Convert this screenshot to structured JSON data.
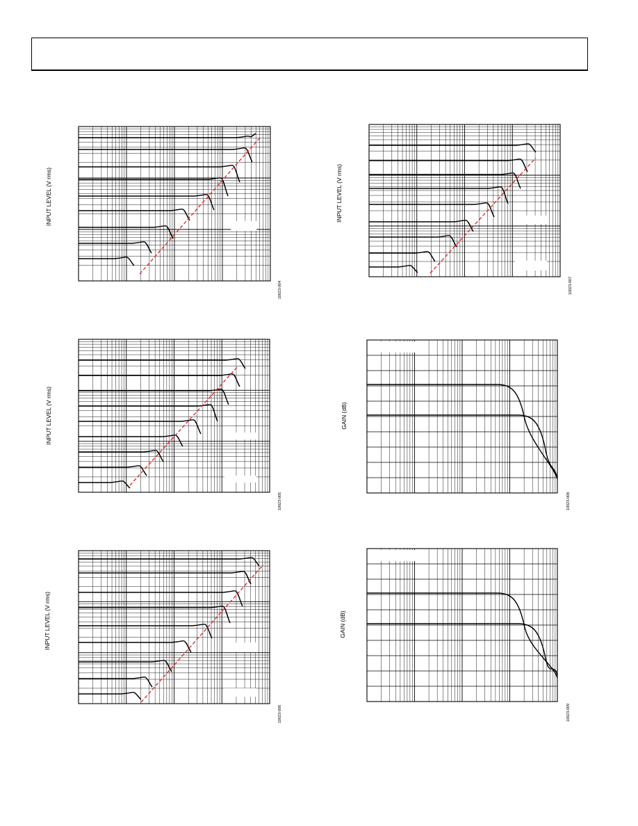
{
  "figures": [
    {
      "ylabel": "INPUT LEVEL (V rms)",
      "fig_id": "10023-004"
    },
    {
      "ylabel": "INPUT LEVEL (V rms)",
      "fig_id": "10023-007"
    },
    {
      "ylabel": "INPUT LEVEL (V rms)",
      "fig_id": "10023-005"
    },
    {
      "ylabel": "GAIN (dB)",
      "fig_id": "10023-008"
    },
    {
      "ylabel": "INPUT LEVEL (V rms)",
      "fig_id": "10023-006"
    },
    {
      "ylabel": "GAIN (dB)",
      "fig_id": "10023-009"
    }
  ],
  "colors": {
    "grid": "#000000",
    "trace": "#000000",
    "limit_line": "#e02020"
  }
}
